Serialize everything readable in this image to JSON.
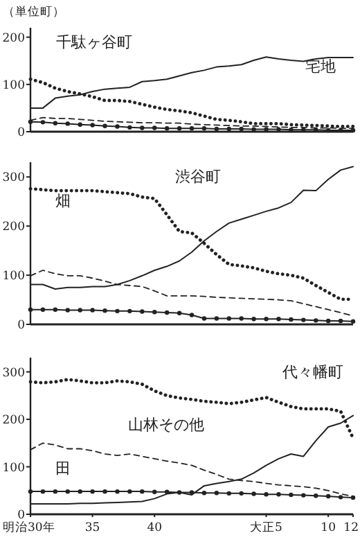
{
  "chart_data": [
    {
      "type": "line",
      "title": "千駄ヶ谷町",
      "ylabel": "（単位町）",
      "categories": [
        null,
        null,
        null,
        null,
        null,
        null,
        null,
        null,
        null,
        null,
        null,
        null,
        null,
        null,
        null,
        null,
        null,
        null,
        null,
        null,
        null,
        null,
        null,
        null,
        null,
        null,
        null
      ],
      "ylim": [
        0,
        220
      ],
      "yticks": [
        0,
        100,
        200
      ],
      "tick_labels": "y",
      "grid": false,
      "annotations": [
        "宅地"
      ],
      "series": [
        {
          "color": "#222222",
          "line_style": "solid",
          "values": [
            50,
            50,
            71,
            75,
            78,
            85,
            90,
            92,
            94,
            106,
            108,
            111,
            118,
            125,
            130,
            137,
            139,
            142,
            151,
            158,
            154,
            151,
            149,
            154,
            157,
            157,
            157
          ]
        },
        {
          "color": "#222222",
          "line_style": "dotted",
          "values": [
            111,
            104,
            92,
            85,
            80,
            74,
            66,
            66,
            64,
            58,
            52,
            47,
            44,
            40,
            33,
            26,
            24,
            21,
            17,
            17,
            17,
            15,
            14,
            13,
            12,
            11,
            11
          ]
        },
        {
          "color": "#222222",
          "line_style": "dashed",
          "values": [
            24,
            30,
            28,
            28,
            26,
            24,
            22,
            21,
            20,
            19,
            19,
            18,
            18,
            16,
            15,
            14,
            13,
            12,
            12,
            11,
            10,
            9,
            9,
            8,
            8,
            7,
            7
          ]
        },
        {
          "color": "#222222",
          "line_style": "solid",
          "marker": "circle",
          "values": [
            21,
            20,
            18,
            17,
            15,
            14,
            12,
            11,
            9,
            8,
            8,
            7,
            7,
            7,
            7,
            6,
            6,
            6,
            5,
            5,
            5,
            4,
            4,
            4,
            3,
            3,
            3
          ]
        }
      ]
    },
    {
      "type": "line",
      "title": "渋谷町",
      "categories": [
        null,
        null,
        null,
        null,
        null,
        null,
        null,
        null,
        null,
        null,
        null,
        null,
        null,
        null,
        null,
        null,
        null,
        null,
        null,
        null,
        null,
        null,
        null,
        null,
        null,
        null,
        null
      ],
      "ylim": [
        0,
        330
      ],
      "yticks": [
        0,
        100,
        200,
        300
      ],
      "tick_labels": "y",
      "grid": false,
      "annotations": [
        "畑"
      ],
      "series": [
        {
          "color": "#222222",
          "line_style": "solid",
          "values": [
            81,
            81,
            72,
            75,
            75,
            77,
            77,
            81,
            89,
            99,
            110,
            118,
            129,
            147,
            170,
            189,
            206,
            214,
            222,
            230,
            237,
            248,
            273,
            272,
            295,
            314,
            321
          ]
        },
        {
          "color": "#222222",
          "line_style": "dotted",
          "values": [
            276,
            274,
            272,
            272,
            272,
            272,
            270,
            268,
            266,
            259,
            256,
            223,
            189,
            186,
            165,
            142,
            122,
            119,
            115,
            108,
            103,
            100,
            94,
            79,
            65,
            51,
            51
          ]
        },
        {
          "color": "#222222",
          "line_style": "dashed",
          "values": [
            99,
            110,
            103,
            99,
            99,
            94,
            88,
            81,
            79,
            77,
            68,
            58,
            58,
            58,
            57,
            55,
            54,
            53,
            52,
            51,
            50,
            48,
            42,
            36,
            30,
            24,
            17
          ]
        },
        {
          "color": "#222222",
          "line_style": "solid",
          "marker": "circle",
          "values": [
            30,
            30,
            30,
            29,
            29,
            29,
            28,
            27,
            27,
            26,
            25,
            24,
            23,
            19,
            12,
            12,
            12,
            12,
            11,
            11,
            11,
            10,
            9,
            8,
            7,
            7,
            6
          ]
        }
      ]
    },
    {
      "type": "line",
      "title": "代々幡町",
      "categories": [
        "明治30年",
        null,
        null,
        null,
        null,
        "35",
        null,
        null,
        null,
        null,
        "40",
        null,
        null,
        null,
        null,
        null,
        null,
        null,
        null,
        "大正5",
        null,
        null,
        null,
        null,
        "10",
        null,
        "12"
      ],
      "ylim": [
        0,
        330
      ],
      "yticks": [
        0,
        100,
        200,
        300
      ],
      "grid": false,
      "annotations": [
        "山林その他",
        "田"
      ],
      "series": [
        {
          "color": "#222222",
          "line_style": "solid",
          "values": [
            22,
            22,
            22,
            22,
            23,
            23,
            24,
            25,
            26,
            27,
            33,
            43,
            46,
            41,
            60,
            65,
            69,
            74,
            87,
            103,
            117,
            127,
            122,
            155,
            184,
            192,
            208
          ]
        },
        {
          "color": "#222222",
          "line_style": "dotted",
          "values": [
            279,
            277,
            279,
            284,
            281,
            277,
            277,
            281,
            279,
            274,
            260,
            250,
            245,
            242,
            238,
            236,
            233,
            236,
            241,
            246,
            236,
            227,
            222,
            222,
            222,
            217,
            160
          ]
        },
        {
          "color": "#222222",
          "line_style": "dashed",
          "values": [
            136,
            150,
            146,
            138,
            138,
            134,
            127,
            124,
            127,
            122,
            117,
            112,
            108,
            103,
            93,
            84,
            74,
            71,
            69,
            65,
            62,
            60,
            58,
            55,
            50,
            43,
            38
          ]
        },
        {
          "color": "#222222",
          "line_style": "solid",
          "marker": "circle",
          "values": [
            48,
            48,
            48,
            48,
            48,
            48,
            48,
            48,
            48,
            48,
            47,
            47,
            46,
            46,
            45,
            45,
            44,
            44,
            43,
            42,
            42,
            41,
            40,
            39,
            38,
            36,
            35
          ]
        }
      ]
    }
  ]
}
